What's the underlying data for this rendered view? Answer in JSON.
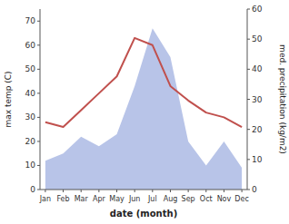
{
  "chart_data": {
    "type": "line",
    "categories": [
      "Jan",
      "Feb",
      "Mar",
      "Apr",
      "May",
      "Jun",
      "Jul",
      "Aug",
      "Sep",
      "Oct",
      "Nov",
      "Dec"
    ],
    "series": [
      {
        "type": "area",
        "color": "#b8c4e8",
        "values": [
          12,
          15,
          22,
          18,
          23,
          43,
          67,
          55,
          20,
          10,
          20,
          9
        ]
      },
      {
        "type": "line",
        "color": "#c0504d",
        "values": [
          28,
          26,
          33,
          40,
          47,
          63,
          60,
          43,
          37,
          32,
          30,
          26
        ]
      }
    ],
    "x_label": "date (month)",
    "y_label": "max temp (C)",
    "y2_label": "med. precipitation (kg/m2)",
    "ylim": [
      0,
      75
    ],
    "yticks": [
      0,
      10,
      20,
      30,
      40,
      50,
      60,
      70
    ],
    "y2lim": [
      0,
      60
    ],
    "y2ticks": [
      0,
      10,
      20,
      30,
      40,
      50,
      60
    ],
    "grid": false
  }
}
